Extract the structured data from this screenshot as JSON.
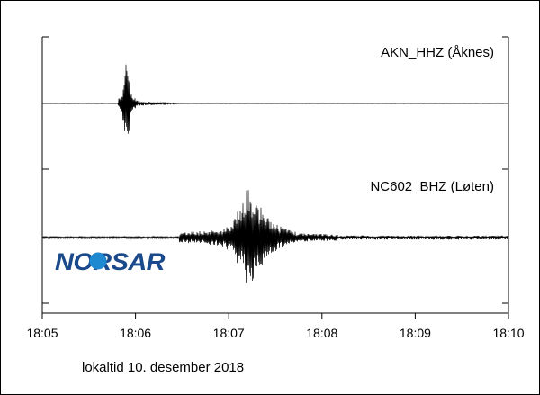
{
  "chart_data": {
    "type": "line",
    "xlabel": "lokaltid 10. desember 2018",
    "xlim": [
      "18:05",
      "18:10"
    ],
    "x_ticks": [
      "18:05",
      "18:06",
      "18:07",
      "18:08",
      "18:09",
      "18:10"
    ],
    "grid": false,
    "series": [
      {
        "name": "AKN_HHZ (Åknes)",
        "station": "Åknes",
        "onset": "18:05:50",
        "peak_time": "18:05:54",
        "coda_end": "18:06:30",
        "peak_amplitude_relative": 1.0,
        "color": "#000000"
      },
      {
        "name": "NC602_BHZ (Løten)",
        "station": "Løten",
        "onset": "18:06:30",
        "peak_time": "18:07:13",
        "coda_end": "18:08:10",
        "peak_amplitude_relative": 1.0,
        "color": "#000000"
      }
    ]
  },
  "logo": {
    "text": "NORSAR",
    "color": "#1a4a8c",
    "dot_color": "#1e88d0"
  }
}
